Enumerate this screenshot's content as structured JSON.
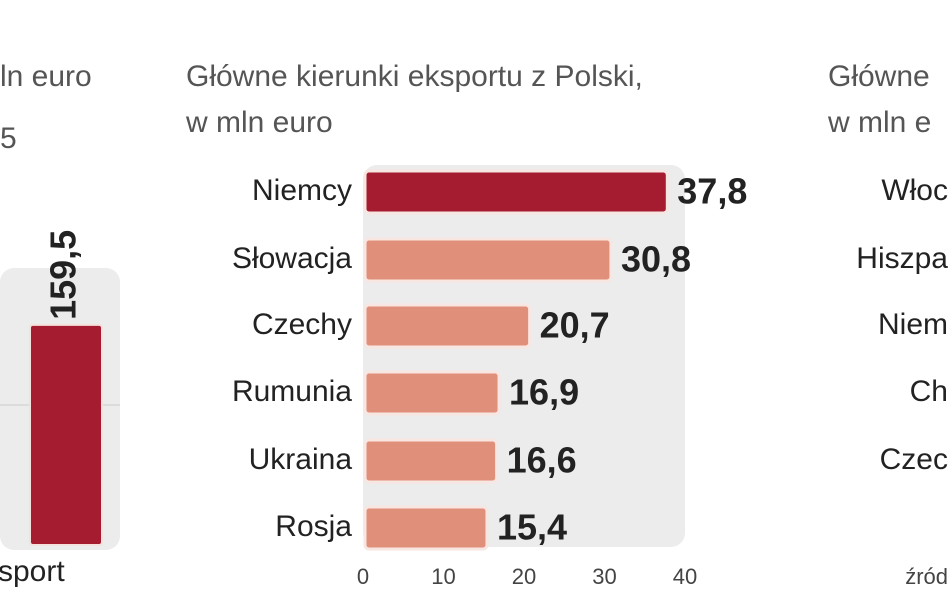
{
  "chart_data": [
    {
      "type": "bar",
      "title": "ln euro",
      "subtitle": "5",
      "categories": [
        "sport"
      ],
      "values": [
        159.5
      ],
      "value_labels": [
        "159,5"
      ],
      "color": "#a51c30",
      "ylim": [
        0,
        200
      ]
    },
    {
      "type": "barh",
      "title": "Główne kierunki eksportu z Polski,",
      "subtitle": "w mln euro",
      "categories": [
        "Niemcy",
        "Słowacja",
        "Czechy",
        "Rumunia",
        "Ukraina",
        "Rosja"
      ],
      "values": [
        37.8,
        30.8,
        20.7,
        16.9,
        16.6,
        15.4
      ],
      "value_labels": [
        "37,8",
        "30,8",
        "20,7",
        "16,9",
        "16,6",
        "15,4"
      ],
      "colors": [
        "#a51c30",
        "#e0907a",
        "#e0907a",
        "#e0907a",
        "#e0907a",
        "#e0907a"
      ],
      "xlim": [
        0,
        40
      ],
      "xticks": [
        0,
        10,
        20,
        30,
        40
      ]
    },
    {
      "type": "barh",
      "title": "Główne",
      "subtitle": "w mln e",
      "categories": [
        "Włoc",
        "Hiszpa",
        "Niem",
        "Ch",
        "Czec"
      ],
      "source": "źród"
    }
  ]
}
